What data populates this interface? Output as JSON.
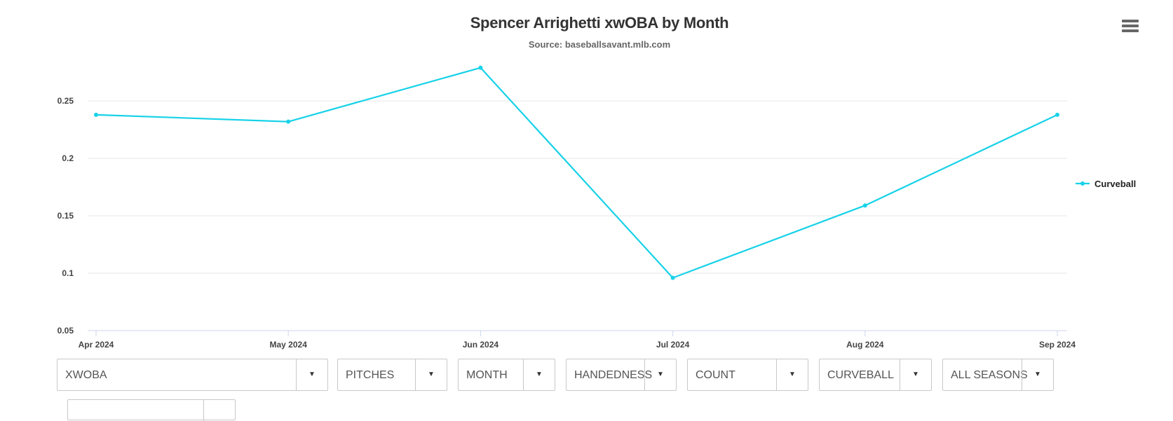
{
  "chart_data": {
    "type": "line",
    "title": "Spencer Arrighetti xwOBA by Month",
    "subtitle": "Source: baseballsavant.mlb.com",
    "categories": [
      "Apr 2024",
      "May 2024",
      "Jun 2024",
      "Jul 2024",
      "Aug 2024",
      "Sep 2024"
    ],
    "series": [
      {
        "name": "Curveball",
        "color": "#17d2e8",
        "values": [
          0.238,
          0.232,
          0.279,
          0.096,
          0.159,
          0.238
        ]
      }
    ],
    "ylim": [
      0.05,
      0.28
    ],
    "yticks": [
      0.05,
      0.1,
      0.15,
      0.2,
      0.25
    ],
    "ytick_labels": [
      "0.05",
      "0.1",
      "0.15",
      "0.2",
      "0.25"
    ],
    "grid": true,
    "legend": "right"
  },
  "menu_icon": "hamburger-menu-icon",
  "controls": [
    {
      "id": "stat",
      "value": "XWOBA"
    },
    {
      "id": "group",
      "value": "PITCHES"
    },
    {
      "id": "period",
      "value": "MONTH"
    },
    {
      "id": "hand",
      "value": "HANDEDNESS"
    },
    {
      "id": "count",
      "value": "COUNT"
    },
    {
      "id": "pitch",
      "value": "CURVEBALL"
    },
    {
      "id": "season",
      "value": "ALL SEASONS"
    }
  ]
}
